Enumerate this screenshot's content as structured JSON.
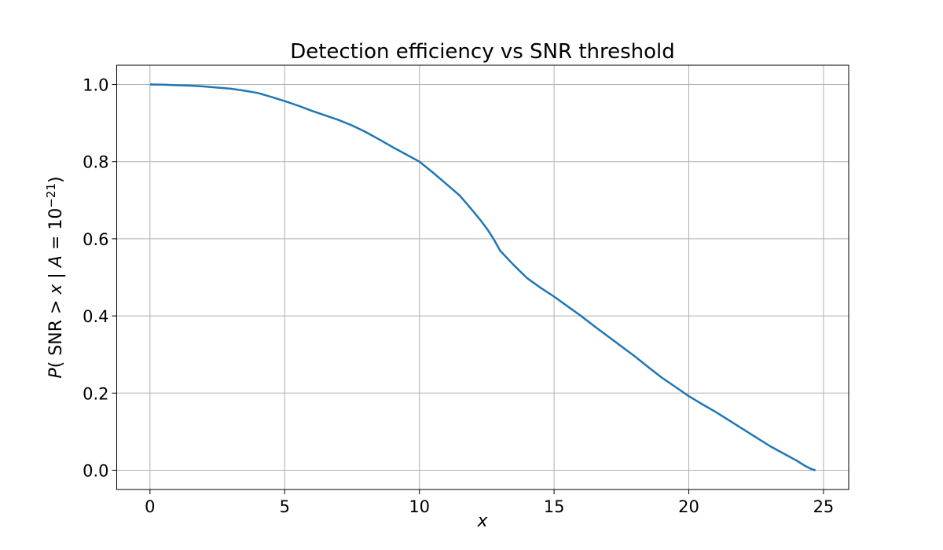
{
  "figure": {
    "background": "#ffffff"
  },
  "chart_data": {
    "type": "line",
    "title": "Detection efficiency vs SNR threshold",
    "xlabel": "x",
    "ylabel": "P( SNR > x | A = 10⁻²¹)",
    "ylabel_parts": [
      {
        "text": "P",
        "italic": true,
        "super": false
      },
      {
        "text": "( SNR ",
        "italic": false,
        "super": false
      },
      {
        "text": "> ",
        "italic": false,
        "super": false
      },
      {
        "text": "x",
        "italic": true,
        "super": false
      },
      {
        "text": " | ",
        "italic": false,
        "super": false
      },
      {
        "text": "A",
        "italic": true,
        "super": false
      },
      {
        "text": " = 10",
        "italic": false,
        "super": false
      },
      {
        "text": "−21",
        "italic": false,
        "super": true
      },
      {
        "text": ")",
        "italic": false,
        "super": false
      }
    ],
    "x_ticks": [
      0,
      5,
      10,
      15,
      20,
      25
    ],
    "x_tick_labels": [
      "0",
      "5",
      "10",
      "15",
      "20",
      "25"
    ],
    "y_ticks": [
      0.0,
      0.2,
      0.4,
      0.6,
      0.8,
      1.0
    ],
    "y_tick_labels": [
      "0.0",
      "0.2",
      "0.4",
      "0.6",
      "0.8",
      "1.0"
    ],
    "xlim": [
      -1.235,
      25.935
    ],
    "ylim": [
      -0.05,
      1.05
    ],
    "grid": true,
    "grid_color": "#b0b0b0",
    "axis_color": "#000000",
    "line_color": "#1f77b4",
    "line_width": 2.5,
    "series": [
      {
        "x": [
          0,
          0.5,
          1,
          1.5,
          2,
          2.5,
          3,
          3.5,
          4,
          4.5,
          5,
          5.5,
          6,
          6.5,
          7,
          7.5,
          8,
          8.5,
          9,
          9.5,
          10,
          10.5,
          11,
          11.5,
          12,
          12.25,
          12.5,
          12.75,
          13,
          13.5,
          14,
          14.5,
          15,
          15.5,
          16,
          16.5,
          17,
          17.5,
          18,
          18.5,
          19,
          19.5,
          20,
          20.5,
          21,
          21.5,
          22,
          22.5,
          23,
          23.5,
          24,
          24.3,
          24.55,
          24.7
        ],
        "y": [
          1.0,
          0.9995,
          0.998,
          0.997,
          0.995,
          0.992,
          0.989,
          0.984,
          0.978,
          0.968,
          0.957,
          0.945,
          0.932,
          0.92,
          0.908,
          0.894,
          0.877,
          0.858,
          0.838,
          0.819,
          0.8,
          0.772,
          0.742,
          0.712,
          0.671,
          0.65,
          0.627,
          0.6,
          0.569,
          0.532,
          0.498,
          0.473,
          0.45,
          0.425,
          0.4,
          0.373,
          0.347,
          0.321,
          0.295,
          0.267,
          0.24,
          0.216,
          0.192,
          0.171,
          0.151,
          0.129,
          0.107,
          0.085,
          0.063,
          0.044,
          0.025,
          0.012,
          0.003,
          0.0
        ]
      }
    ]
  }
}
